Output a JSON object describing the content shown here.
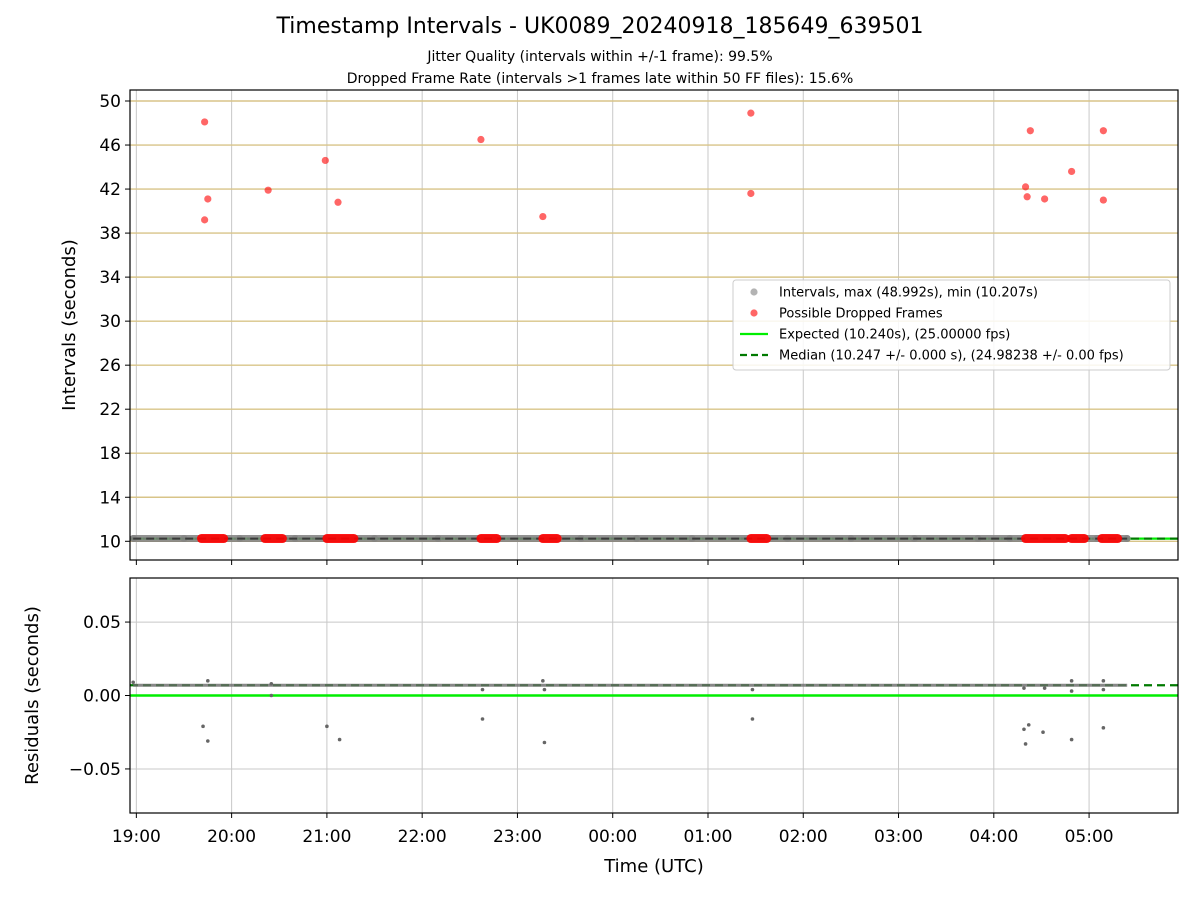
{
  "figure": {
    "title": "Timestamp Intervals - UK0089_20240918_185649_639501",
    "subtitle_jitter": "Jitter Quality (intervals within +/-1 frame): 99.5%",
    "subtitle_dropped": "Dropped Frame Rate (intervals >1 frames late within 50 FF files): 15.6%"
  },
  "chart_data": [
    {
      "type": "scatter",
      "panel": "intervals",
      "xlabel": "",
      "ylabel": "Intervals (seconds)",
      "xlim": [
        "18:56",
        "05:56"
      ],
      "ylim": [
        8.3,
        51.0
      ],
      "y_ticks": [
        "10",
        "14",
        "18",
        "22",
        "26",
        "30",
        "34",
        "38",
        "42",
        "46",
        "50"
      ],
      "x_ticks": [
        "19:00",
        "20:00",
        "21:00",
        "22:00",
        "23:00",
        "00:00",
        "01:00",
        "02:00",
        "03:00",
        "04:00",
        "05:00"
      ],
      "grid": "x grey, y goldenrod",
      "legend_position": "center-right",
      "colors": {
        "intervals": "#808080",
        "dropped": "#ff0000",
        "expected": "#00ee00",
        "median": "#007a00",
        "y_grid": "#d8c488",
        "x_grid": "#c8c8c8"
      },
      "series": [
        {
          "name": "Intervals, max (48.992s), min (10.207s)",
          "style": "grey dots",
          "points": [
            {
              "x": "18:58",
              "y": 10.25
            },
            {
              "x": "19:30",
              "y": 10.25
            },
            {
              "x": "20:05",
              "y": 10.25
            },
            {
              "x": "20:40",
              "y": 10.25
            },
            {
              "x": "21:30",
              "y": 10.25
            },
            {
              "x": "22:10",
              "y": 10.25
            },
            {
              "x": "22:45",
              "y": 10.25
            },
            {
              "x": "23:40",
              "y": 10.25
            },
            {
              "x": "00:15",
              "y": 10.25
            },
            {
              "x": "00:50",
              "y": 10.25
            },
            {
              "x": "01:50",
              "y": 10.25
            },
            {
              "x": "02:30",
              "y": 10.25
            },
            {
              "x": "03:10",
              "y": 10.25
            },
            {
              "x": "03:50",
              "y": 10.25
            },
            {
              "x": "04:10",
              "y": 10.25
            },
            {
              "x": "05:05",
              "y": 10.25
            },
            {
              "x": "05:24",
              "y": 10.25
            }
          ]
        },
        {
          "name": "Possible Dropped Frames",
          "style": "red dots",
          "points": [
            {
              "x": "19:43",
              "y": 48.1
            },
            {
              "x": "19:45",
              "y": 41.1
            },
            {
              "x": "19:43",
              "y": 39.2
            },
            {
              "x": "20:23",
              "y": 41.9
            },
            {
              "x": "20:59",
              "y": 44.6
            },
            {
              "x": "21:07",
              "y": 40.8
            },
            {
              "x": "22:37",
              "y": 46.5
            },
            {
              "x": "23:16",
              "y": 39.5
            },
            {
              "x": "01:27",
              "y": 48.9
            },
            {
              "x": "01:27",
              "y": 41.6
            },
            {
              "x": "04:20",
              "y": 42.2
            },
            {
              "x": "04:21",
              "y": 41.3
            },
            {
              "x": "04:23",
              "y": 47.3
            },
            {
              "x": "04:32",
              "y": 41.1
            },
            {
              "x": "04:49",
              "y": 43.6
            },
            {
              "x": "05:09",
              "y": 47.3
            },
            {
              "x": "05:09",
              "y": 41.0
            }
          ],
          "clusters_at_baseline": [
            {
              "from": "19:41",
              "to": "19:55",
              "y": 10.25
            },
            {
              "from": "20:21",
              "to": "20:32",
              "y": 10.25
            },
            {
              "from": "21:00",
              "to": "21:17",
              "y": 10.25
            },
            {
              "from": "22:37",
              "to": "22:47",
              "y": 10.25
            },
            {
              "from": "23:16",
              "to": "23:25",
              "y": 10.25
            },
            {
              "from": "01:27",
              "to": "01:37",
              "y": 10.25
            },
            {
              "from": "04:20",
              "to": "04:45",
              "y": 10.25
            },
            {
              "from": "04:49",
              "to": "04:57",
              "y": 10.25
            },
            {
              "from": "05:08",
              "to": "05:18",
              "y": 10.25
            }
          ]
        },
        {
          "name": "Expected (10.240s), (25.00000 fps)",
          "style": "solid green line",
          "y": 10.24
        },
        {
          "name": "Median (10.247 +/- 0.000 s), (24.98238 +/- 0.00 fps)",
          "style": "dashed dark green line",
          "y": 10.247
        }
      ]
    },
    {
      "type": "scatter",
      "panel": "residuals",
      "xlabel": "Time (UTC)",
      "ylabel": "Residuals (seconds)",
      "xlim": [
        "18:56",
        "05:56"
      ],
      "ylim": [
        -0.08,
        0.08
      ],
      "y_ticks": [
        "−0.05",
        "0.00",
        "0.05"
      ],
      "x_ticks": [
        "19:00",
        "20:00",
        "21:00",
        "22:00",
        "23:00",
        "00:00",
        "01:00",
        "02:00",
        "03:00",
        "04:00",
        "05:00"
      ],
      "grid": "both grey",
      "lines": [
        {
          "name": "expected",
          "y": 0.0,
          "style": "solid green"
        },
        {
          "name": "median",
          "y": 0.007,
          "style": "dashed dark green"
        }
      ],
      "points": [
        {
          "x": "19:42",
          "y": -0.021
        },
        {
          "x": "19:45",
          "y": -0.031
        },
        {
          "x": "21:00",
          "y": -0.021
        },
        {
          "x": "21:08",
          "y": -0.03
        },
        {
          "x": "22:38",
          "y": -0.016
        },
        {
          "x": "23:17",
          "y": -0.032
        },
        {
          "x": "01:28",
          "y": -0.016
        },
        {
          "x": "04:19",
          "y": -0.023
        },
        {
          "x": "04:20",
          "y": -0.033
        },
        {
          "x": "04:22",
          "y": -0.02
        },
        {
          "x": "04:31",
          "y": -0.025
        },
        {
          "x": "04:49",
          "y": -0.03
        },
        {
          "x": "05:09",
          "y": -0.022
        },
        {
          "x": "18:58",
          "y": 0.009
        },
        {
          "x": "19:45",
          "y": 0.01
        },
        {
          "x": "20:25",
          "y": 0.008
        },
        {
          "x": "22:38",
          "y": 0.004
        },
        {
          "x": "23:16",
          "y": 0.01
        },
        {
          "x": "23:17",
          "y": 0.004
        },
        {
          "x": "01:28",
          "y": 0.004
        },
        {
          "x": "04:19",
          "y": 0.005
        },
        {
          "x": "04:32",
          "y": 0.005
        },
        {
          "x": "04:49",
          "y": 0.01
        },
        {
          "x": "04:49",
          "y": 0.003
        },
        {
          "x": "05:09",
          "y": 0.01
        },
        {
          "x": "05:09",
          "y": 0.004
        },
        {
          "x": "20:25",
          "y": 0.0
        }
      ]
    }
  ]
}
